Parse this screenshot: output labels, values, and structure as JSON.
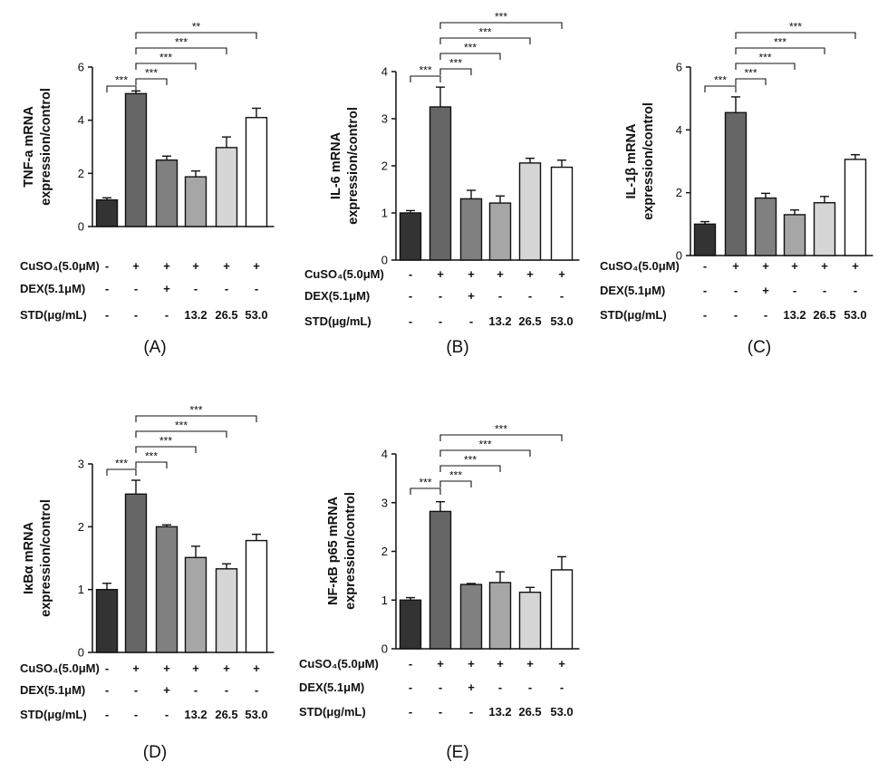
{
  "chart_data": [
    {
      "type": "bar",
      "panel_label": "(A)",
      "ylabel_lines": [
        "TNF-a mRNA",
        "expression/control"
      ],
      "ylim": [
        0,
        6
      ],
      "yticks": [
        "0",
        "2",
        "4",
        "6"
      ],
      "values": [
        1.0,
        5.0,
        2.5,
        1.87,
        2.97,
        4.1
      ],
      "errors": [
        0.08,
        0.1,
        0.15,
        0.22,
        0.4,
        0.35
      ],
      "fills": [
        "#333333",
        "#666666",
        "#808080",
        "#a6a6a6",
        "#d6d6d6",
        "#ffffff"
      ],
      "significance": [
        {
          "from": 0,
          "to": 1,
          "label": "***"
        },
        {
          "from": 1,
          "to": 2,
          "label": "***"
        },
        {
          "from": 1,
          "to": 3,
          "label": "***"
        },
        {
          "from": 1,
          "to": 4,
          "label": "***"
        },
        {
          "from": 1,
          "to": 5,
          "label": "**"
        }
      ],
      "treatments": [
        {
          "label": "CuSO₄(5.0μM)",
          "cells": [
            "-",
            "+",
            "+",
            "+",
            "+",
            "+"
          ]
        },
        {
          "label": "DEX(5.1μM)",
          "cells": [
            "-",
            "-",
            "+",
            "-",
            "-",
            "-"
          ]
        },
        {
          "label": "STD(μg/mL)",
          "cells": [
            "-",
            "-",
            "-",
            "13.2",
            "26.5",
            "53.0"
          ]
        }
      ]
    },
    {
      "type": "bar",
      "panel_label": "(B)",
      "ylabel_lines": [
        "IL-6 mRNA",
        "expression/control"
      ],
      "ylim": [
        0,
        4
      ],
      "yticks": [
        "0",
        "1",
        "2",
        "3",
        "4"
      ],
      "values": [
        1.0,
        3.25,
        1.3,
        1.21,
        2.06,
        1.97
      ],
      "errors": [
        0.05,
        0.42,
        0.18,
        0.15,
        0.1,
        0.15
      ],
      "fills": [
        "#333333",
        "#666666",
        "#808080",
        "#a6a6a6",
        "#d6d6d6",
        "#ffffff"
      ],
      "significance": [
        {
          "from": 0,
          "to": 1,
          "label": "***"
        },
        {
          "from": 1,
          "to": 2,
          "label": "***"
        },
        {
          "from": 1,
          "to": 3,
          "label": "***"
        },
        {
          "from": 1,
          "to": 4,
          "label": "***"
        },
        {
          "from": 1,
          "to": 5,
          "label": "***"
        }
      ],
      "treatments": [
        {
          "label": "CuSO₄(5.0μM)",
          "cells": [
            "-",
            "+",
            "+",
            "+",
            "+",
            "+"
          ]
        },
        {
          "label": "DEX(5.1μM)",
          "cells": [
            "-",
            "-",
            "+",
            "-",
            "-",
            "-"
          ]
        },
        {
          "label": "STD(μg/mL)",
          "cells": [
            "-",
            "-",
            "-",
            "13.2",
            "26.5",
            "53.0"
          ]
        }
      ]
    },
    {
      "type": "bar",
      "panel_label": "(C)",
      "ylabel_lines": [
        "IL-1β mRNA",
        "expression/control"
      ],
      "ylim": [
        0,
        6
      ],
      "yticks": [
        "0",
        "2",
        "4",
        "6"
      ],
      "values": [
        1.0,
        4.55,
        1.83,
        1.3,
        1.68,
        3.06
      ],
      "errors": [
        0.08,
        0.5,
        0.15,
        0.15,
        0.2,
        0.15
      ],
      "fills": [
        "#333333",
        "#666666",
        "#808080",
        "#a6a6a6",
        "#d6d6d6",
        "#ffffff"
      ],
      "significance": [
        {
          "from": 0,
          "to": 1,
          "label": "***"
        },
        {
          "from": 1,
          "to": 2,
          "label": "***"
        },
        {
          "from": 1,
          "to": 3,
          "label": "***"
        },
        {
          "from": 1,
          "to": 4,
          "label": "***"
        },
        {
          "from": 1,
          "to": 5,
          "label": "***"
        }
      ],
      "treatments": [
        {
          "label": "CuSO₄(5.0μM)",
          "cells": [
            "-",
            "+",
            "+",
            "+",
            "+",
            "+"
          ]
        },
        {
          "label": "DEX(5.1μM)",
          "cells": [
            "-",
            "-",
            "+",
            "-",
            "-",
            "-"
          ]
        },
        {
          "label": "STD(μg/mL)",
          "cells": [
            "-",
            "-",
            "-",
            "13.2",
            "26.5",
            "53.0"
          ]
        }
      ]
    },
    {
      "type": "bar",
      "panel_label": "(D)",
      "ylabel_lines": [
        "IκBα mRNA",
        "expression/control"
      ],
      "ylim": [
        0,
        3
      ],
      "yticks": [
        "0",
        "1",
        "2",
        "3"
      ],
      "values": [
        1.0,
        2.52,
        2.0,
        1.51,
        1.33,
        1.78
      ],
      "errors": [
        0.1,
        0.22,
        0.03,
        0.18,
        0.08,
        0.1
      ],
      "fills": [
        "#333333",
        "#666666",
        "#808080",
        "#a6a6a6",
        "#d6d6d6",
        "#ffffff"
      ],
      "significance": [
        {
          "from": 0,
          "to": 1,
          "label": "***"
        },
        {
          "from": 1,
          "to": 2,
          "label": "***"
        },
        {
          "from": 1,
          "to": 3,
          "label": "***"
        },
        {
          "from": 1,
          "to": 4,
          "label": "***"
        },
        {
          "from": 1,
          "to": 5,
          "label": "***"
        }
      ],
      "treatments": [
        {
          "label": "CuSO₄(5.0μM)",
          "cells": [
            "-",
            "+",
            "+",
            "+",
            "+",
            "+"
          ]
        },
        {
          "label": "DEX(5.1μM)",
          "cells": [
            "-",
            "-",
            "+",
            "-",
            "-",
            "-"
          ]
        },
        {
          "label": "STD(μg/mL)",
          "cells": [
            "-",
            "-",
            "-",
            "13.2",
            "26.5",
            "53.0"
          ]
        }
      ]
    },
    {
      "type": "bar",
      "panel_label": "(E)",
      "ylabel_lines": [
        "NF-κB p65  mRNA",
        "expression/control"
      ],
      "ylim": [
        0,
        4
      ],
      "yticks": [
        "0",
        "1",
        "2",
        "3",
        "4"
      ],
      "values": [
        1.0,
        2.82,
        1.32,
        1.36,
        1.16,
        1.62
      ],
      "errors": [
        0.05,
        0.2,
        0.02,
        0.22,
        0.1,
        0.27
      ],
      "fills": [
        "#333333",
        "#666666",
        "#808080",
        "#a6a6a6",
        "#d6d6d6",
        "#ffffff"
      ],
      "significance": [
        {
          "from": 0,
          "to": 1,
          "label": "***"
        },
        {
          "from": 1,
          "to": 2,
          "label": "***"
        },
        {
          "from": 1,
          "to": 3,
          "label": "***"
        },
        {
          "from": 1,
          "to": 4,
          "label": "***"
        },
        {
          "from": 1,
          "to": 5,
          "label": "***"
        }
      ],
      "treatments": [
        {
          "label": "CuSO₄(5.0μM)",
          "cells": [
            "-",
            "+",
            "+",
            "+",
            "+",
            "+"
          ]
        },
        {
          "label": "DEX(5.1μM)",
          "cells": [
            "-",
            "-",
            "+",
            "-",
            "-",
            "-"
          ]
        },
        {
          "label": "STD(μg/mL)",
          "cells": [
            "-",
            "-",
            "-",
            "13.2",
            "26.5",
            "53.0"
          ]
        }
      ]
    }
  ]
}
